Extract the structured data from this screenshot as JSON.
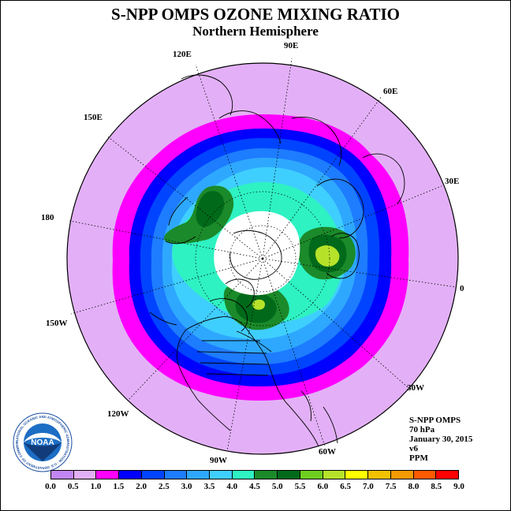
{
  "header": {
    "title": "S-NPP OMPS OZONE MIXING RATIO",
    "subtitle": "Northern Hemisphere"
  },
  "map": {
    "projection": "polar-stereographic",
    "hemisphere": "north",
    "longitude_labels": [
      "90E",
      "60E",
      "30E",
      "0",
      "30W",
      "60W",
      "90W",
      "120W",
      "150W",
      "180",
      "150E",
      "120E"
    ],
    "no_data_region": "polar night (white)"
  },
  "info": {
    "instrument": "S-NPP OMPS",
    "level": "70 hPa",
    "date": "January 30, 2015",
    "version": "v6",
    "units": "PPM"
  },
  "logo": {
    "text": "NOAA",
    "ring_text": "NATIONAL OCEANIC AND ATMOSPHERIC ADMINISTRATION · U.S. DEPARTMENT OF COMMERCE"
  },
  "colorbar": {
    "labels": [
      "0.0",
      "0.5",
      "1.0",
      "1.5",
      "2.0",
      "2.5",
      "3.0",
      "3.5",
      "4.0",
      "4.5",
      "5.0",
      "5.5",
      "6.0",
      "6.5",
      "7.0",
      "7.5",
      "8.0",
      "8.5",
      "9.0"
    ],
    "colors": [
      "#c285f5",
      "#e3b0f7",
      "#ff00ff",
      "#0000ff",
      "#0044ff",
      "#1e7cff",
      "#2ea8ff",
      "#3fcfff",
      "#2ef2c2",
      "#1b8a2a",
      "#006a1a",
      "#6fcf20",
      "#b6e32a",
      "#ffff00",
      "#f2c200",
      "#f59a00",
      "#ff5a00",
      "#ff0000",
      "#8b5a3c"
    ]
  }
}
